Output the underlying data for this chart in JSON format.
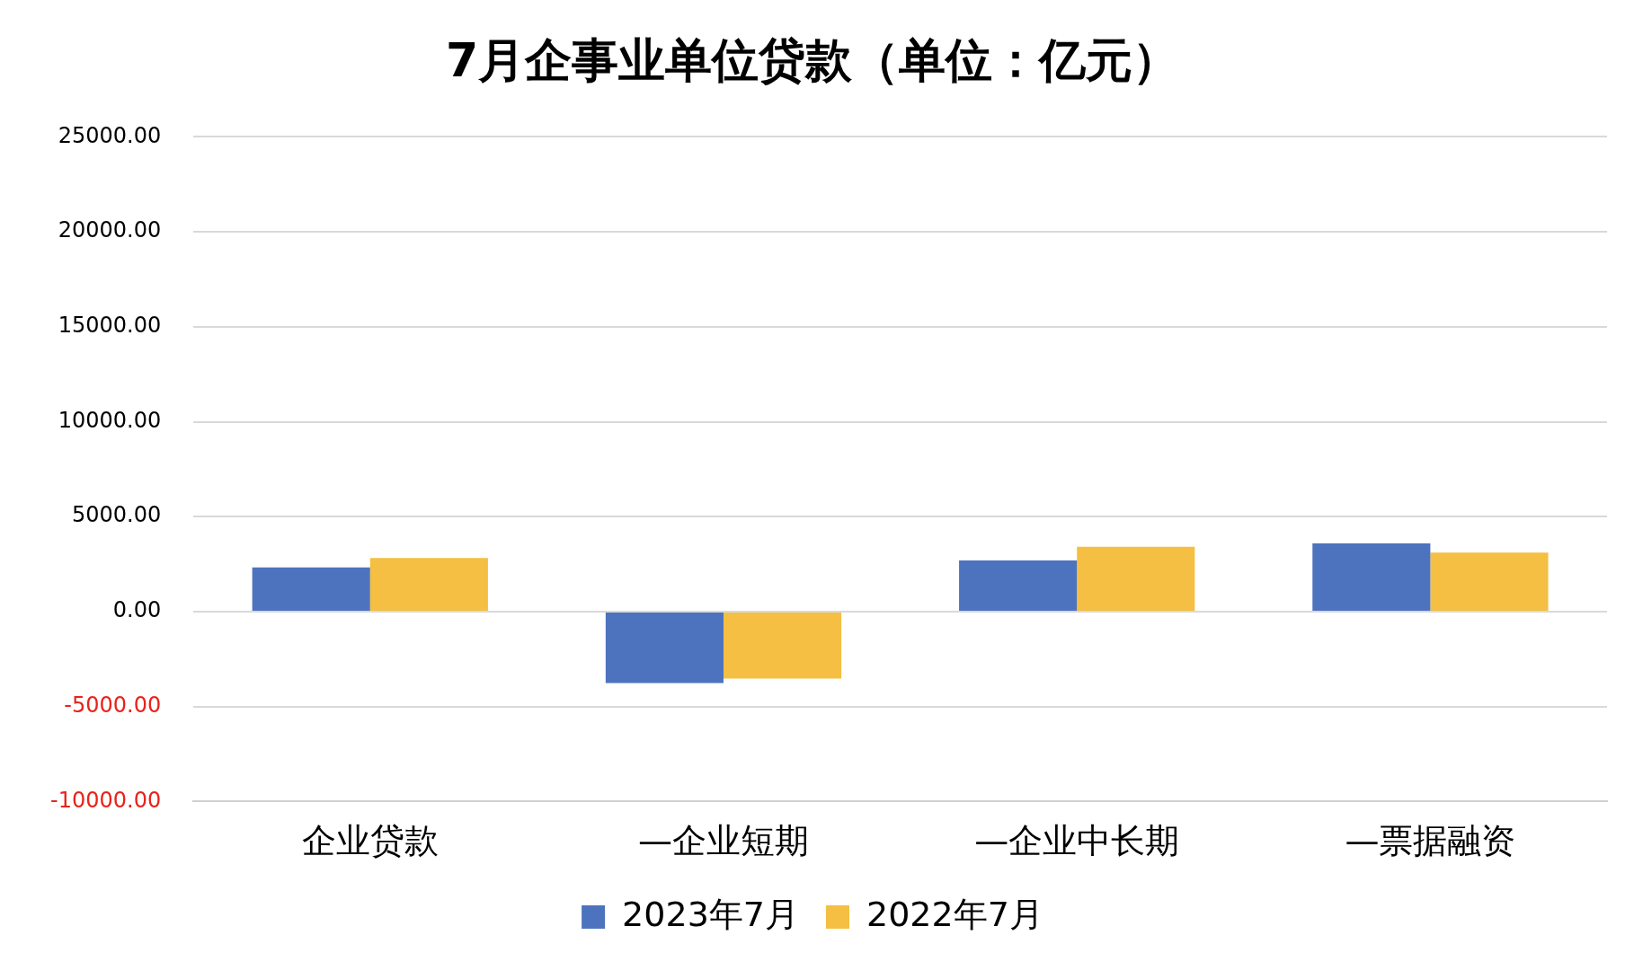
{
  "chart_data": {
    "type": "bar",
    "title": "7月企事业单位贷款（单位：亿元）",
    "categories": [
      "企业贷款",
      "—企业短期",
      "—企业中长期",
      "—票据融资"
    ],
    "series": [
      {
        "name": "2023年7月",
        "color": "#4e73be",
        "values": [
          2330,
          -3760,
          2690,
          3590
        ]
      },
      {
        "name": "2022年7月",
        "color": "#f4bf42",
        "values": [
          2830,
          -3530,
          3420,
          3110
        ]
      }
    ],
    "ylim": [
      -10000,
      25000
    ],
    "yticks": [
      {
        "value": -10000,
        "label": "-10000.00"
      },
      {
        "value": -5000,
        "label": "-5000.00"
      },
      {
        "value": 0,
        "label": "0.00"
      },
      {
        "value": 5000,
        "label": "5000.00"
      },
      {
        "value": 10000,
        "label": "10000.00"
      },
      {
        "value": 15000,
        "label": "15000.00"
      },
      {
        "value": 20000,
        "label": "20000.00"
      },
      {
        "value": 25000,
        "label": "25000.00"
      }
    ],
    "grid": "y",
    "legend": "bottom"
  }
}
